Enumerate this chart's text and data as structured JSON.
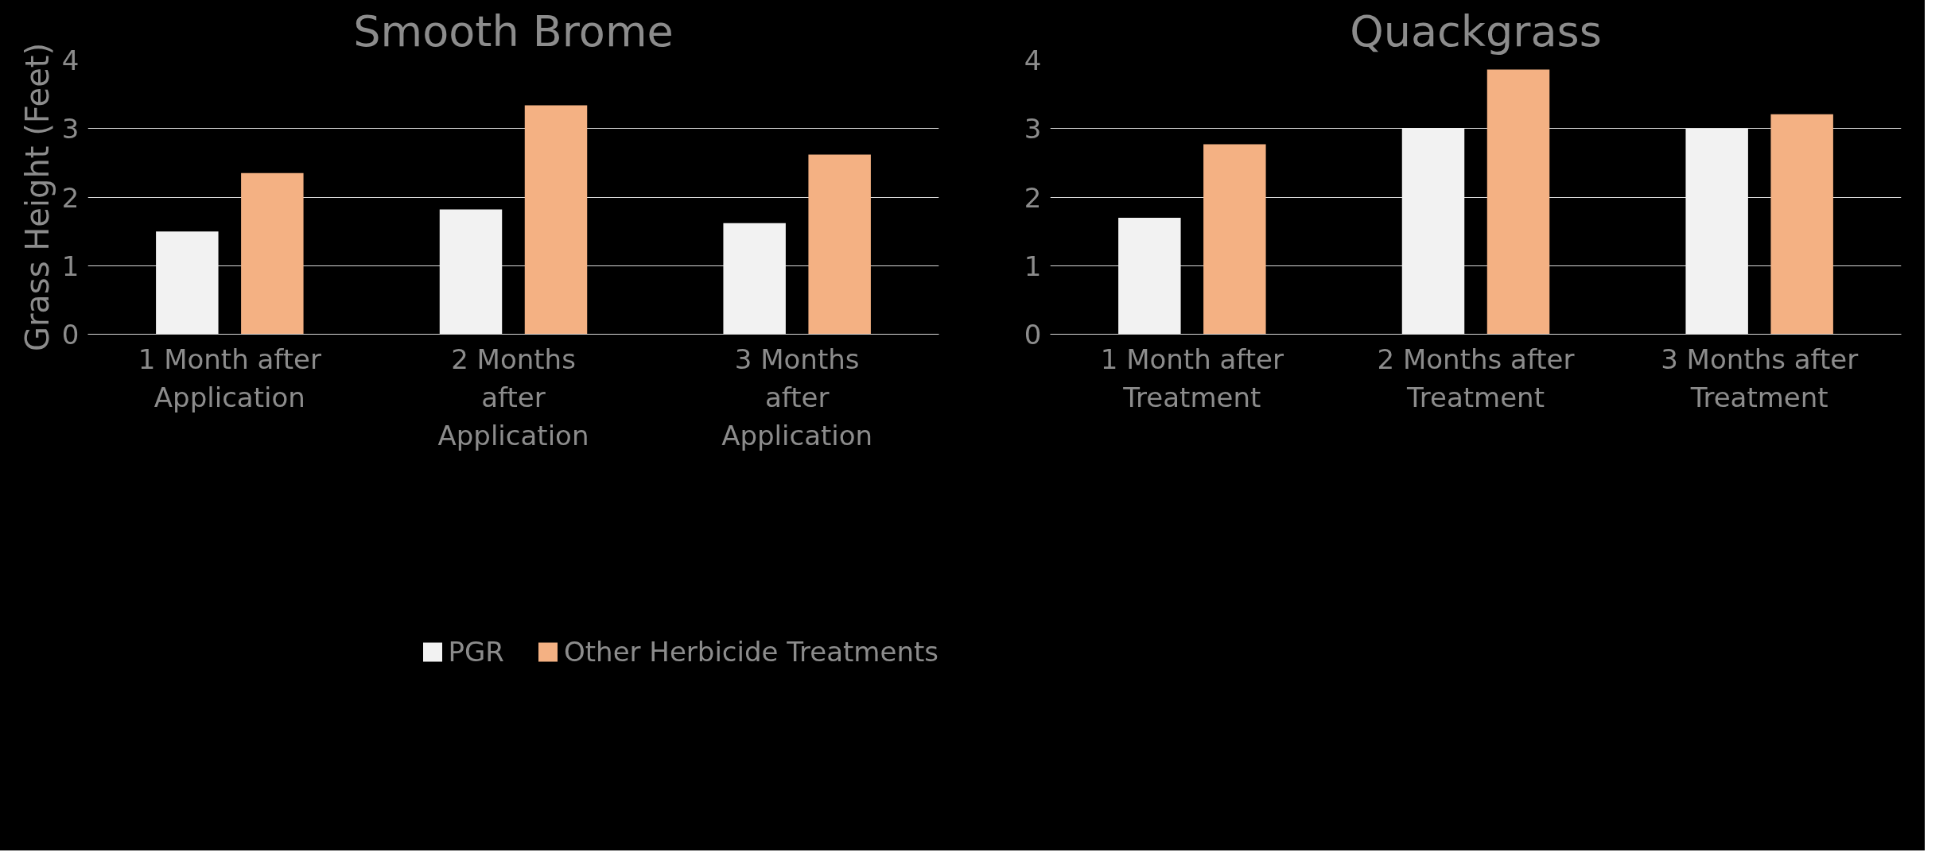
{
  "chart_data": [
    {
      "type": "bar",
      "title": "Smooth Brome",
      "ylabel": "Grass Height (Feet)",
      "categories": [
        "1 Month after\nApplication",
        "2 Months\nafter\nApplication",
        "3 Months\nafter\nApplication"
      ],
      "series": [
        {
          "name": "PGR",
          "color": "#f2f2f2",
          "values": [
            1.5,
            1.82,
            1.62
          ]
        },
        {
          "name": "Other Herbicide Treatments",
          "color": "#f4b183",
          "values": [
            2.35,
            3.34,
            2.62
          ]
        }
      ],
      "ylim": [
        0,
        4
      ],
      "yticks": [
        0,
        1,
        2,
        3,
        4
      ],
      "grid": "y",
      "legend": "bottom"
    },
    {
      "type": "bar",
      "title": "Quackgrass",
      "categories": [
        "1 Month after\nTreatment",
        "2 Months after\nTreatment",
        "3 Months after\nTreatment"
      ],
      "series": [
        {
          "color": "#f2f2f2",
          "values": [
            1.7,
            3.01,
            3.0
          ]
        },
        {
          "color": "#f4b183",
          "values": [
            2.77,
            3.86,
            3.21
          ]
        }
      ],
      "ylim": [
        0,
        4
      ],
      "yticks": [
        0,
        1,
        2,
        3,
        4
      ],
      "grid": "y"
    }
  ]
}
